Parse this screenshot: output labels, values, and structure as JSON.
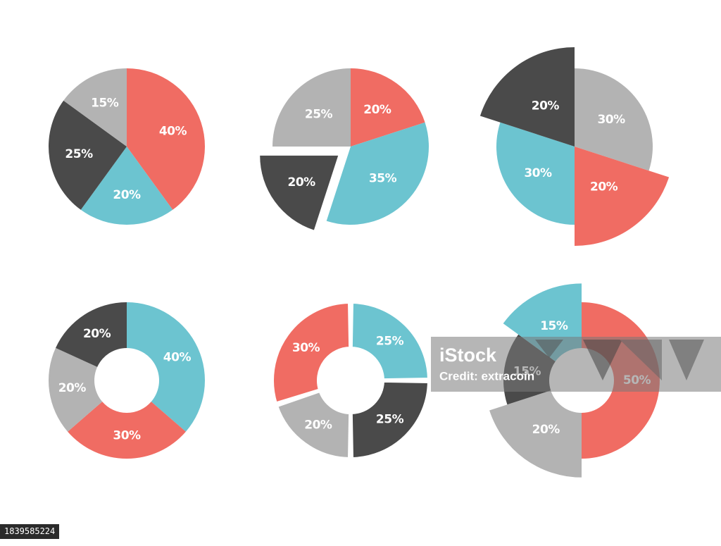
{
  "colors": {
    "red": "#f06c63",
    "teal": "#6cc4d0",
    "dark": "#4a4a4a",
    "gray": "#b3b3b3"
  },
  "chart_data": [
    {
      "type": "pie",
      "style": "pie",
      "slices": [
        {
          "label": "40%",
          "value": 40,
          "color": "red"
        },
        {
          "label": "20%",
          "value": 20,
          "color": "teal"
        },
        {
          "label": "25%",
          "value": 25,
          "color": "dark"
        },
        {
          "label": "15%",
          "value": 15,
          "color": "gray"
        }
      ]
    },
    {
      "type": "pie",
      "style": "exploded-pie",
      "slices": [
        {
          "label": "20%",
          "value": 20,
          "color": "red"
        },
        {
          "label": "35%",
          "value": 35,
          "color": "teal"
        },
        {
          "label": "20%",
          "value": 20,
          "color": "dark",
          "exploded": true
        },
        {
          "label": "25%",
          "value": 25,
          "color": "gray"
        }
      ]
    },
    {
      "type": "pie",
      "style": "varying-radius-pie",
      "slices": [
        {
          "label": "30%",
          "value": 30,
          "color": "gray"
        },
        {
          "label": "20%",
          "value": 20,
          "color": "red",
          "enlarged": true
        },
        {
          "label": "30%",
          "value": 30,
          "color": "teal"
        },
        {
          "label": "20%",
          "value": 20,
          "color": "dark",
          "enlarged": true
        }
      ]
    },
    {
      "type": "pie",
      "style": "donut",
      "slices": [
        {
          "label": "40%",
          "value": 40,
          "color": "teal"
        },
        {
          "label": "30%",
          "value": 30,
          "color": "red"
        },
        {
          "label": "20%",
          "value": 20,
          "color": "gray"
        },
        {
          "label": "20%",
          "value": 20,
          "color": "dark"
        }
      ]
    },
    {
      "type": "pie",
      "style": "segmented-donut",
      "slices": [
        {
          "label": "25%",
          "value": 25,
          "color": "teal"
        },
        {
          "label": "25%",
          "value": 25,
          "color": "dark"
        },
        {
          "label": "20%",
          "value": 20,
          "color": "gray"
        },
        {
          "label": "30%",
          "value": 30,
          "color": "red"
        }
      ]
    },
    {
      "type": "pie",
      "style": "varying-radius-donut",
      "slices": [
        {
          "label": "50%",
          "value": 50,
          "color": "red"
        },
        {
          "label": "20%",
          "value": 20,
          "color": "gray",
          "enlarged": true
        },
        {
          "label": "15%",
          "value": 15,
          "color": "dark"
        },
        {
          "label": "15%",
          "value": 15,
          "color": "teal",
          "enlarged": true
        }
      ]
    }
  ],
  "watermark": {
    "brand": "iStock",
    "credit": "Credit: extracoin"
  },
  "image_id": "1839585224"
}
